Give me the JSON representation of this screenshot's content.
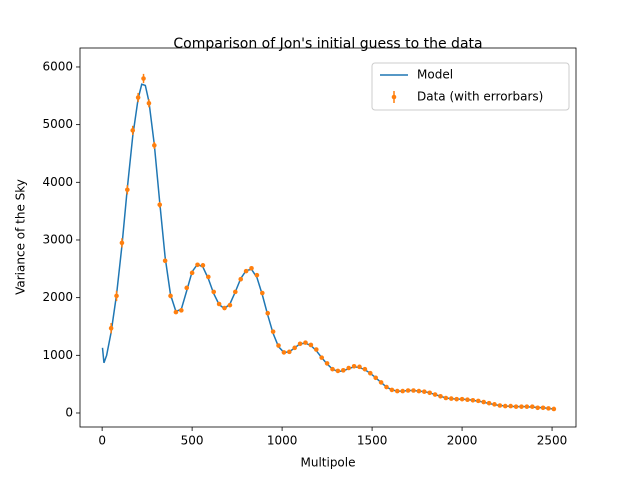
{
  "chart_data": {
    "type": "line",
    "title": "Comparison of Jon's initial guess to the data",
    "x_label": "Multipole",
    "y_label": "Variance of the Sky",
    "xlim": [
      -123,
      2633
    ],
    "ylim": [
      -243,
      6329
    ],
    "xticks": [
      0,
      500,
      1000,
      1500,
      2000,
      2500
    ],
    "yticks": [
      0,
      1000,
      2000,
      3000,
      4000,
      5000,
      6000
    ],
    "legend": "upper right",
    "series": [
      {
        "name": "Model",
        "color": "#1f77b4",
        "mode": "line",
        "x": [
          2,
          10,
          25,
          50,
          80,
          110,
          140,
          170,
          200,
          220,
          240,
          260,
          290,
          320,
          350,
          380,
          410,
          440,
          470,
          500,
          530,
          560,
          590,
          620,
          650,
          680,
          710,
          740,
          770,
          800,
          830,
          860,
          890,
          920,
          950,
          980,
          1010,
          1040,
          1070,
          1100,
          1130,
          1160,
          1190,
          1220,
          1250,
          1280,
          1310,
          1340,
          1370,
          1400,
          1430,
          1460,
          1490,
          1520,
          1550,
          1580,
          1610,
          1640,
          1670,
          1700,
          1730,
          1760,
          1790,
          1820,
          1850,
          1880,
          1910,
          1940,
          1970,
          2000,
          2050,
          2100,
          2150,
          2200,
          2250,
          2300,
          2350,
          2400,
          2450,
          2508
        ],
        "values": [
          1130,
          870,
          1000,
          1400,
          2050,
          2900,
          3900,
          4800,
          5450,
          5700,
          5680,
          5400,
          4650,
          3650,
          2700,
          2050,
          1760,
          1800,
          2120,
          2450,
          2580,
          2530,
          2330,
          2070,
          1880,
          1810,
          1890,
          2100,
          2330,
          2470,
          2490,
          2350,
          2050,
          1700,
          1380,
          1150,
          1050,
          1060,
          1130,
          1200,
          1210,
          1170,
          1080,
          960,
          850,
          760,
          720,
          730,
          770,
          800,
          790,
          750,
          690,
          610,
          530,
          450,
          400,
          380,
          380,
          390,
          390,
          380,
          370,
          350,
          320,
          290,
          260,
          250,
          240,
          240,
          225,
          200,
          165,
          135,
          120,
          110,
          110,
          100,
          90,
          70
        ]
      },
      {
        "name": "Data (with errorbars)",
        "color": "#ff7f0e",
        "mode": "errorbar",
        "x": [
          50,
          80,
          110,
          140,
          170,
          200,
          230,
          260,
          290,
          320,
          350,
          380,
          410,
          440,
          470,
          500,
          530,
          560,
          590,
          620,
          650,
          680,
          710,
          740,
          770,
          800,
          830,
          860,
          890,
          920,
          950,
          980,
          1010,
          1040,
          1070,
          1100,
          1130,
          1160,
          1190,
          1220,
          1250,
          1280,
          1310,
          1340,
          1370,
          1400,
          1430,
          1460,
          1490,
          1520,
          1550,
          1580,
          1610,
          1640,
          1670,
          1700,
          1730,
          1760,
          1790,
          1820,
          1850,
          1880,
          1910,
          1940,
          1970,
          2000,
          2030,
          2060,
          2090,
          2120,
          2150,
          2180,
          2210,
          2240,
          2270,
          2300,
          2330,
          2360,
          2390,
          2420,
          2450,
          2480,
          2510
        ],
        "values": [
          1470,
          2030,
          2950,
          3870,
          4900,
          5470,
          5800,
          5370,
          4640,
          3610,
          2640,
          2030,
          1750,
          1780,
          2170,
          2430,
          2570,
          2560,
          2360,
          2100,
          1890,
          1820,
          1870,
          2100,
          2320,
          2460,
          2510,
          2390,
          2080,
          1730,
          1410,
          1170,
          1050,
          1060,
          1130,
          1200,
          1220,
          1180,
          1100,
          960,
          860,
          760,
          730,
          740,
          780,
          810,
          800,
          760,
          690,
          610,
          530,
          450,
          400,
          380,
          380,
          390,
          390,
          380,
          370,
          350,
          320,
          290,
          260,
          250,
          240,
          240,
          230,
          220,
          210,
          190,
          170,
          150,
          130,
          120,
          120,
          110,
          110,
          110,
          110,
          90,
          90,
          80,
          70
        ],
        "errors": [
          90,
          90,
          80,
          80,
          80,
          80,
          80,
          70,
          60,
          50,
          40,
          40,
          30,
          30,
          30,
          30,
          30,
          30,
          30,
          30,
          30,
          30,
          30,
          30,
          30,
          30,
          30,
          30,
          30,
          25,
          25,
          25,
          25,
          25,
          25,
          25,
          25,
          25,
          25,
          20,
          20,
          20,
          20,
          20,
          20,
          20,
          20,
          20,
          20,
          20,
          20,
          20,
          20,
          20,
          20,
          20,
          20,
          20,
          20,
          20,
          20,
          20,
          20,
          20,
          20,
          20,
          20,
          20,
          20,
          20,
          20,
          20,
          20,
          20,
          20,
          20,
          20,
          20,
          20,
          20,
          20,
          20,
          20
        ]
      }
    ]
  }
}
